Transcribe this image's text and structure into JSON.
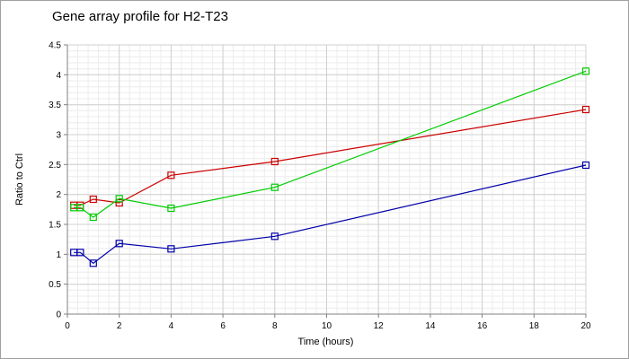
{
  "chart_data": {
    "type": "line",
    "title": "Gene array profile for H2-T23",
    "xlabel": "Time (hours)",
    "ylabel": "Ratio to Ctrl",
    "xlim": [
      0,
      20
    ],
    "ylim": [
      0,
      4.5
    ],
    "x_ticks": [
      0,
      2,
      4,
      6,
      8,
      10,
      12,
      14,
      16,
      18,
      20
    ],
    "y_ticks": [
      0,
      0.5,
      1,
      1.5,
      2,
      2.5,
      3,
      3.5,
      4,
      4.5
    ],
    "y_tick_labels": [
      "0",
      "0.5",
      "1",
      "1.5",
      "2",
      "2.5",
      "3",
      "3.5",
      "4",
      "4.5"
    ],
    "grid": true,
    "minor_grid": true,
    "marker": "square",
    "series": [
      {
        "color": "#cc0000",
        "x": [
          0.25,
          0.5,
          1,
          2,
          4,
          8,
          20
        ],
        "y": [
          1.82,
          1.82,
          1.92,
          1.86,
          2.32,
          2.55,
          3.42
        ]
      },
      {
        "color": "#00cc00",
        "x": [
          0.25,
          0.5,
          1,
          2,
          4,
          8,
          20
        ],
        "y": [
          1.78,
          1.78,
          1.62,
          1.93,
          1.77,
          2.12,
          4.06
        ]
      },
      {
        "color": "#0000aa",
        "x": [
          0.25,
          0.5,
          1,
          2,
          4,
          8,
          20
        ],
        "y": [
          1.03,
          1.03,
          0.85,
          1.18,
          1.09,
          1.3,
          2.49
        ]
      }
    ]
  }
}
